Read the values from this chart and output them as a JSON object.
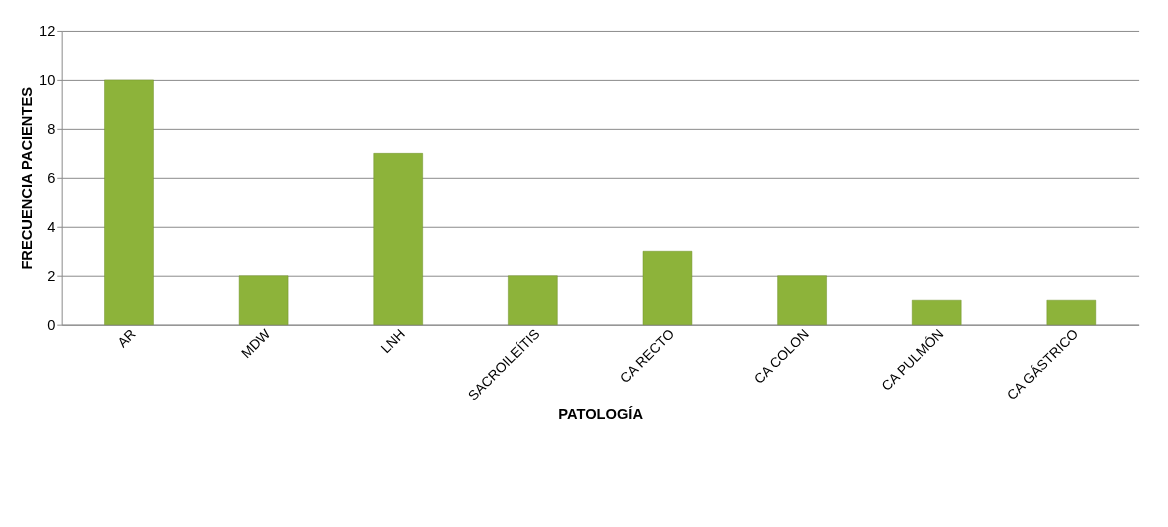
{
  "chart_data": {
    "type": "bar",
    "xlabel": "PATOLOGÍA",
    "ylabel": "FRECUENCIA PACIENTES",
    "categories": [
      "AR",
      "MDW",
      "LNH",
      "SACROILEÍTIS",
      "CA RECTO",
      "CA COLON",
      "CA PULMÓN",
      "CA GÁSTRICO"
    ],
    "values": [
      10,
      2,
      7,
      2,
      3,
      2,
      1,
      1
    ],
    "color": "#8db33a",
    "ylim": [
      0,
      12
    ],
    "yticks": [
      0,
      2,
      4,
      6,
      8,
      10,
      12
    ],
    "grid": "y"
  }
}
